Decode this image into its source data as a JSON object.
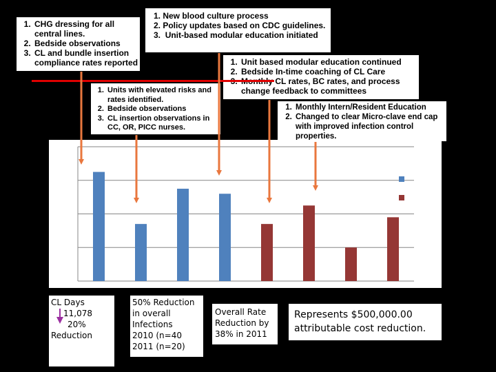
{
  "boxes": {
    "box1": [
      "CHG dressing for all central lines.",
      "Bedside observations",
      "CL and bundle insertion compliance rates reported"
    ],
    "box2": [
      "New blood culture process",
      "Policy updates based on CDC guidelines.",
      "Unit-based modular education initiated"
    ],
    "box3": [
      "Units with elevated risks and rates identified.",
      "Bedside observations",
      " CL insertion observations in CC, OR, PICC nurses."
    ],
    "box4": [
      "Unit based modular education continued",
      "Bedside In-time coaching of CL Care",
      "Monthly CL rates, BC rates, and process change feedback to committees"
    ],
    "box5": [
      "Monthly Intern/Resident Education",
      "Changed to  clear Micro-clave end cap with improved  infection control properties."
    ]
  },
  "callouts": {
    "cl_days": [
      "CL Days",
      "11,078",
      "20%",
      "Reduction"
    ],
    "infections": [
      "50% Reduction",
      "in overall",
      "Infections",
      "2010 (n=40",
      "2011 (n=20)"
    ],
    "overall_rate": [
      "Overall Rate",
      "Reduction by",
      "38% in 2011"
    ],
    "cost": [
      "Represents $500,000.00",
      "attributable cost reduction."
    ]
  },
  "colors": {
    "series_2010": "#4f81bd",
    "series_2011": "#953735",
    "arrow": "#e9773e",
    "red_line": "#e00000",
    "grid": "#868686"
  },
  "chart_data": {
    "type": "bar",
    "title": "",
    "xlabel": "",
    "ylabel": "",
    "ylim": [
      0,
      8
    ],
    "grid": true,
    "legend": "right",
    "series": [
      {
        "values": [
          6.5,
          3.4,
          5.5,
          5.2
        ]
      },
      {
        "values": [
          3.4,
          4.5,
          2.0,
          3.8
        ]
      }
    ]
  }
}
